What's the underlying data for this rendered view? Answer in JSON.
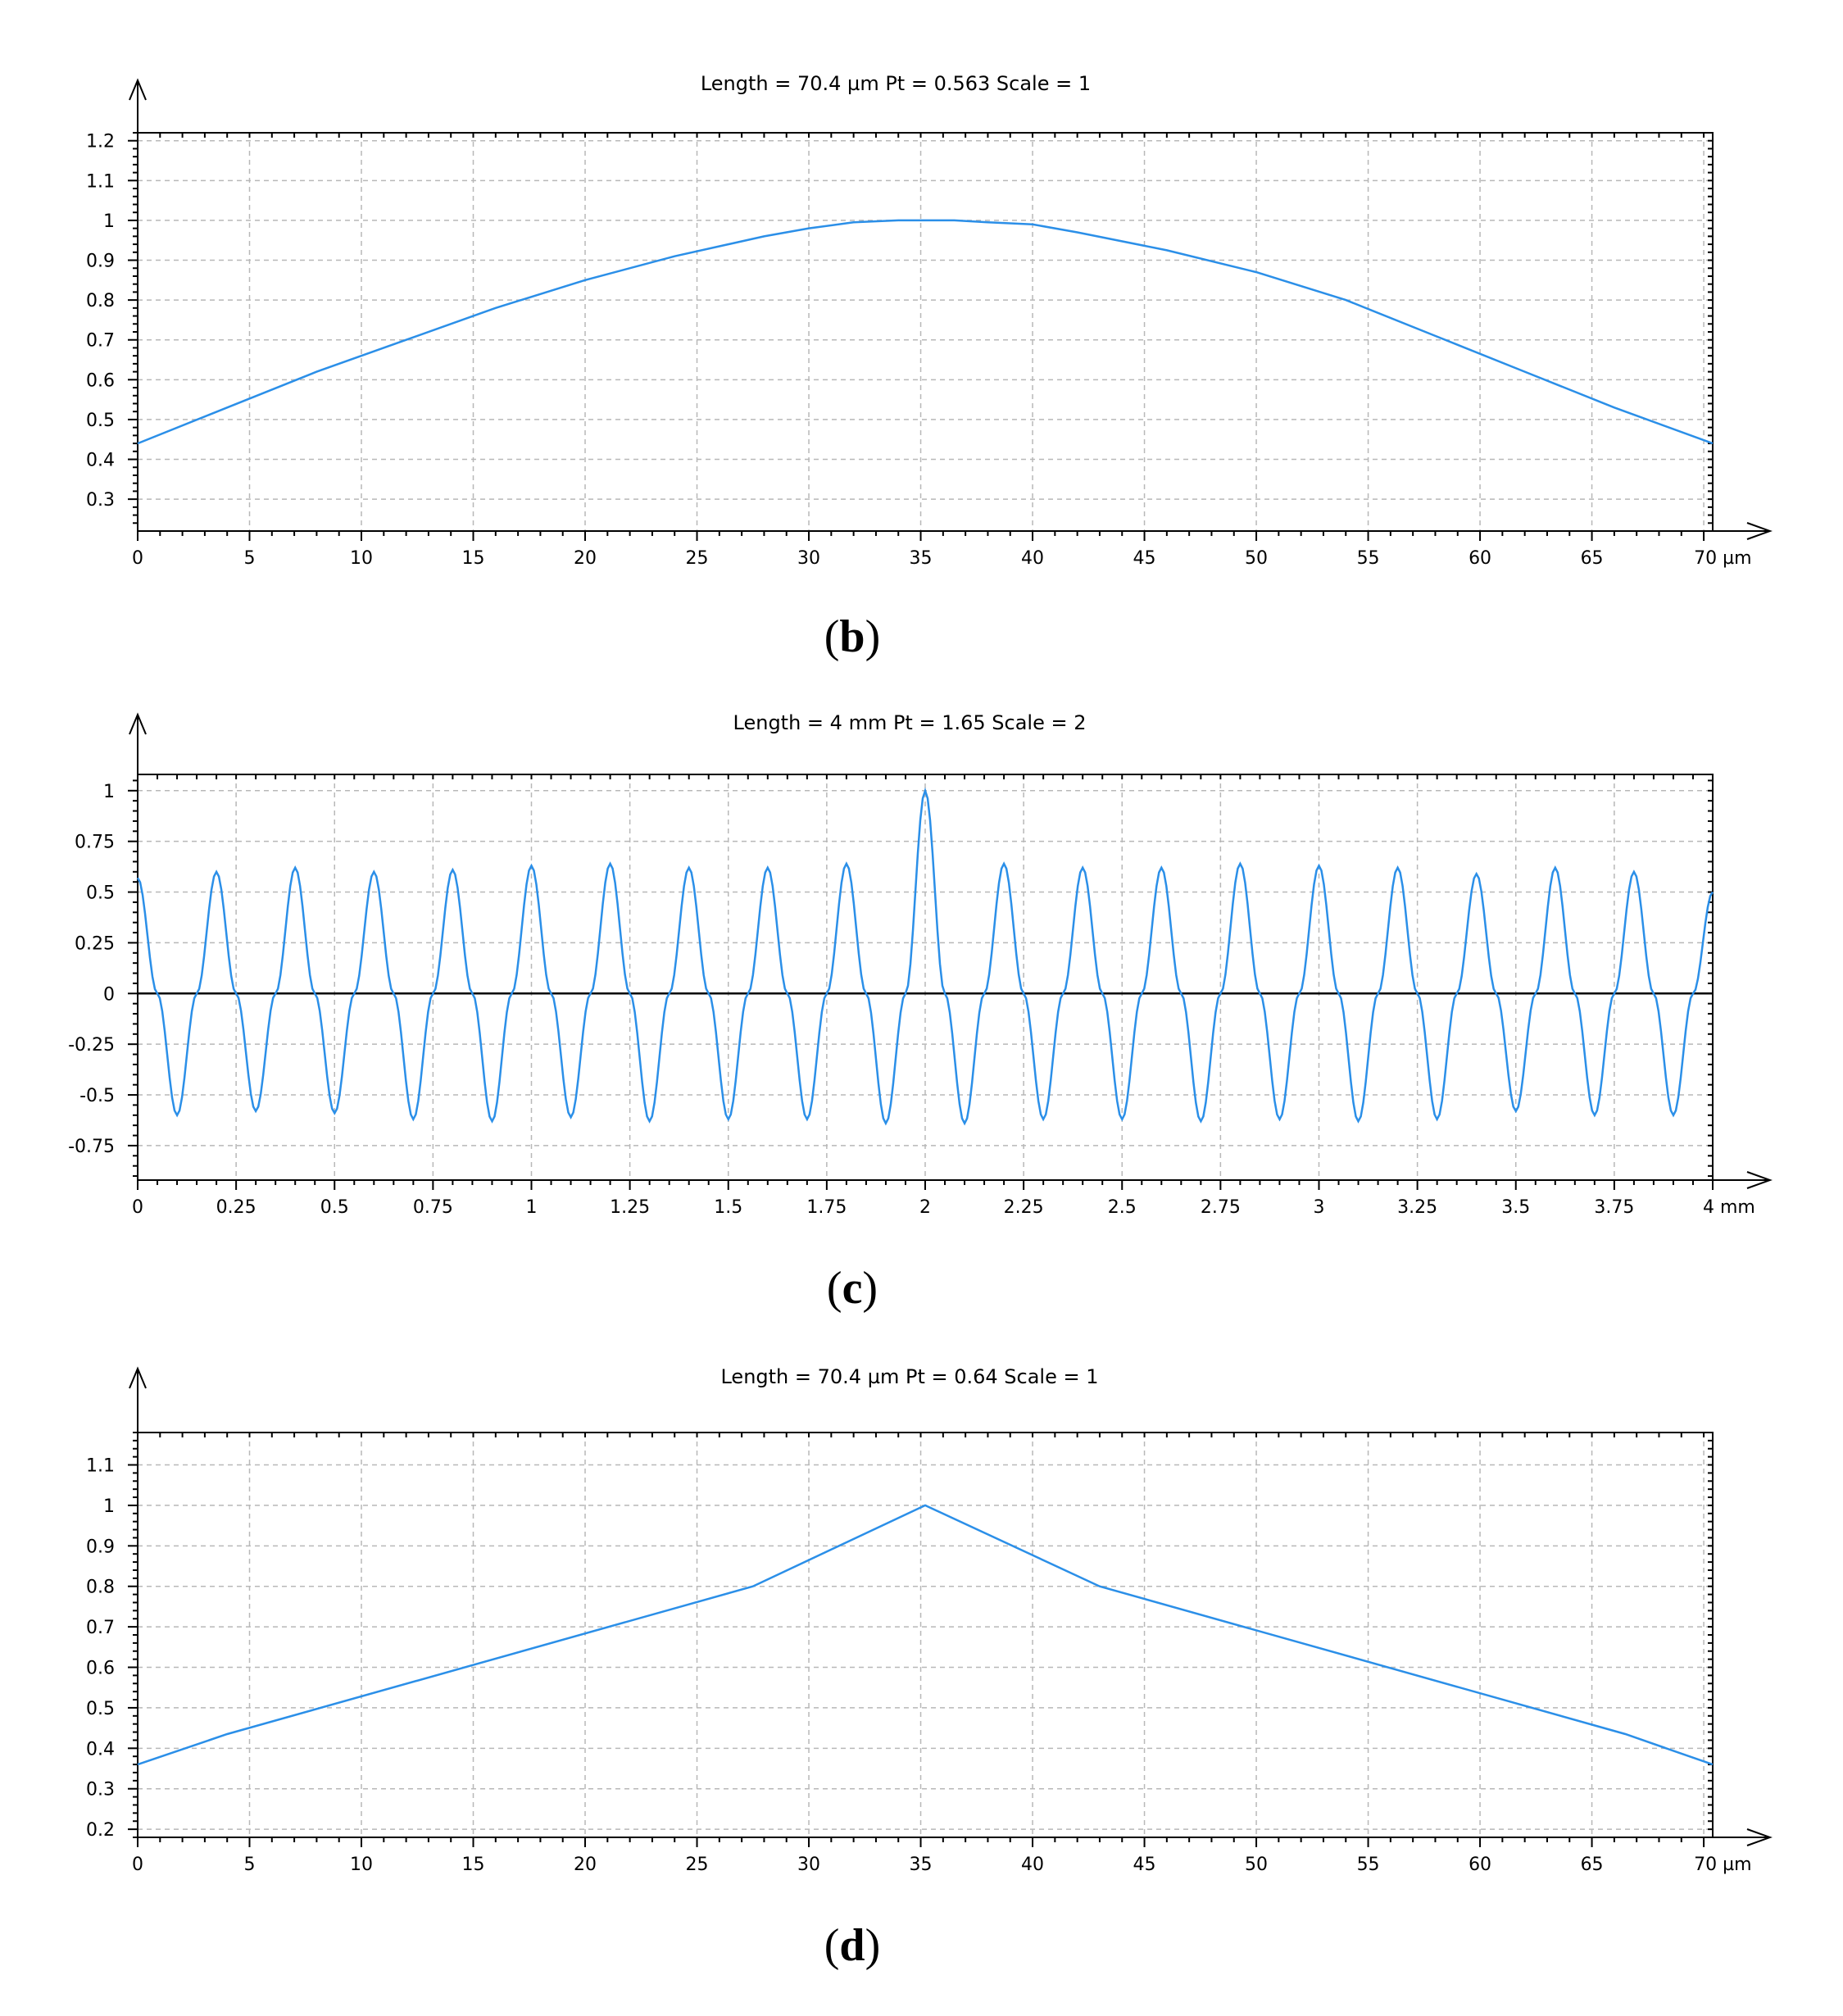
{
  "chart_data": [
    {
      "type": "line",
      "title": "Length = 70.4 µm  Pt = 0.563    Scale = 1",
      "caption_open": "(",
      "caption_letter": "b",
      "caption_close": ")",
      "x_unit_tick": "70 µm",
      "xlim": [
        0,
        70.4
      ],
      "ylim": [
        0.22,
        1.22
      ],
      "xticks": [
        0,
        5,
        10,
        15,
        20,
        25,
        30,
        35,
        40,
        45,
        50,
        55,
        60,
        65,
        70
      ],
      "xtick_labels": [
        "0",
        "5",
        "10",
        "15",
        "20",
        "25",
        "30",
        "35",
        "40",
        "45",
        "50",
        "55",
        "60",
        "65",
        "70 µm"
      ],
      "yticks": [
        0.3,
        0.4,
        0.5,
        0.6,
        0.7,
        0.8,
        0.9,
        1.0,
        1.1,
        1.2
      ],
      "ytick_labels": [
        "0.3",
        "0.4",
        "0.5",
        "0.6",
        "0.7",
        "0.8",
        "0.9",
        "1",
        "1.1",
        "1.2"
      ],
      "grid": true,
      "zero_line": false,
      "series": [
        {
          "name": "profile",
          "color": "#2b8fe8",
          "x": [
            0,
            4,
            8,
            12,
            16,
            20,
            24,
            28,
            30,
            32,
            34,
            35.2,
            36.5,
            38,
            40,
            42,
            46,
            50,
            54,
            58,
            62,
            66,
            70.4
          ],
          "y": [
            0.44,
            0.53,
            0.62,
            0.7,
            0.78,
            0.85,
            0.91,
            0.96,
            0.98,
            0.995,
            1.0,
            1.0,
            1.0,
            0.995,
            0.99,
            0.97,
            0.925,
            0.87,
            0.8,
            0.71,
            0.62,
            0.53,
            0.44
          ]
        }
      ]
    },
    {
      "type": "line",
      "title": "Length = 4 mm  Pt = 1.65    Scale = 2",
      "caption_open": "(",
      "caption_letter": "c",
      "caption_close": ")",
      "x_unit_tick": "4 mm",
      "xlim": [
        0,
        4
      ],
      "ylim": [
        -0.92,
        1.08
      ],
      "xticks": [
        0,
        0.25,
        0.5,
        0.75,
        1,
        1.25,
        1.5,
        1.75,
        2,
        2.25,
        2.5,
        2.75,
        3,
        3.25,
        3.5,
        3.75,
        4
      ],
      "xtick_labels": [
        "0",
        "0.25",
        "0.5",
        "0.75",
        "1",
        "1.25",
        "1.5",
        "1.75",
        "2",
        "2.25",
        "2.5",
        "2.75",
        "3",
        "3.25",
        "3.5",
        "3.75",
        "4 mm"
      ],
      "yticks": [
        -0.75,
        -0.5,
        -0.25,
        0,
        0.25,
        0.5,
        0.75,
        1
      ],
      "ytick_labels": [
        "-0.75",
        "-0.5",
        "-0.25",
        "0",
        "0.25",
        "0.5",
        "0.75",
        "1"
      ],
      "grid": true,
      "zero_line": true,
      "series": [
        {
          "name": "profile",
          "color": "#2b8fe8",
          "x": [
            0,
            0.05,
            0.1,
            0.15,
            0.2,
            0.25,
            0.3,
            0.35,
            0.4,
            0.45,
            0.5,
            0.55,
            0.6,
            0.65,
            0.7,
            0.75,
            0.8,
            0.85,
            0.9,
            0.95,
            1.0,
            1.05,
            1.1,
            1.15,
            1.2,
            1.25,
            1.3,
            1.35,
            1.4,
            1.45,
            1.5,
            1.55,
            1.6,
            1.65,
            1.7,
            1.75,
            1.8,
            1.85,
            1.9,
            1.95,
            2.0,
            2.05,
            2.1,
            2.15,
            2.2,
            2.25,
            2.3,
            2.35,
            2.4,
            2.45,
            2.5,
            2.55,
            2.6,
            2.65,
            2.7,
            2.75,
            2.8,
            2.85,
            2.9,
            2.95,
            3.0,
            3.05,
            3.1,
            3.15,
            3.2,
            3.25,
            3.3,
            3.35,
            3.4,
            3.45,
            3.5,
            3.55,
            3.6,
            3.65,
            3.7,
            3.75,
            3.8,
            3.85,
            3.9,
            3.95,
            4.0
          ],
          "y": [
            0.57,
            0.0,
            -0.6,
            0.0,
            0.6,
            0.0,
            -0.58,
            0.0,
            0.62,
            0.0,
            -0.59,
            0.0,
            0.6,
            0.0,
            -0.62,
            0.0,
            0.61,
            0.0,
            -0.63,
            0.0,
            0.63,
            0.0,
            -0.61,
            0.0,
            0.64,
            0.0,
            -0.63,
            0.0,
            0.62,
            0.0,
            -0.62,
            0.0,
            0.62,
            0.0,
            -0.62,
            0.0,
            0.64,
            0.0,
            -0.64,
            0.0,
            1.0,
            0.0,
            -0.64,
            0.0,
            0.64,
            0.0,
            -0.62,
            0.0,
            0.62,
            0.0,
            -0.62,
            0.0,
            0.62,
            0.0,
            -0.63,
            0.0,
            0.64,
            0.0,
            -0.62,
            0.0,
            0.63,
            0.0,
            -0.63,
            0.0,
            0.62,
            0.0,
            -0.62,
            0.0,
            0.59,
            0.0,
            -0.58,
            0.0,
            0.62,
            0.0,
            -0.6,
            0.0,
            0.6,
            0.0,
            -0.6,
            0.0,
            0.5
          ]
        }
      ]
    },
    {
      "type": "line",
      "title": "Length = 70.4 µm  Pt = 0.64    Scale = 1",
      "caption_open": "(",
      "caption_letter": "d",
      "caption_close": ")",
      "x_unit_tick": "70 µm",
      "xlim": [
        0,
        70.4
      ],
      "ylim": [
        0.18,
        1.18
      ],
      "xticks": [
        0,
        5,
        10,
        15,
        20,
        25,
        30,
        35,
        40,
        45,
        50,
        55,
        60,
        65,
        70
      ],
      "xtick_labels": [
        "0",
        "5",
        "10",
        "15",
        "20",
        "25",
        "30",
        "35",
        "40",
        "45",
        "50",
        "55",
        "60",
        "65",
        "70 µm"
      ],
      "yticks": [
        0.2,
        0.3,
        0.4,
        0.5,
        0.6,
        0.7,
        0.8,
        0.9,
        1.0,
        1.1
      ],
      "ytick_labels": [
        "0.2",
        "0.3",
        "0.4",
        "0.5",
        "0.6",
        "0.7",
        "0.8",
        "0.9",
        "1",
        "1.1"
      ],
      "grid": true,
      "zero_line": false,
      "series": [
        {
          "name": "profile",
          "color": "#2b8fe8",
          "x": [
            0,
            4,
            27.5,
            35.2,
            43,
            66.5,
            70.4
          ],
          "y": [
            0.36,
            0.435,
            0.8,
            1.0,
            0.8,
            0.435,
            0.36
          ]
        }
      ]
    }
  ]
}
